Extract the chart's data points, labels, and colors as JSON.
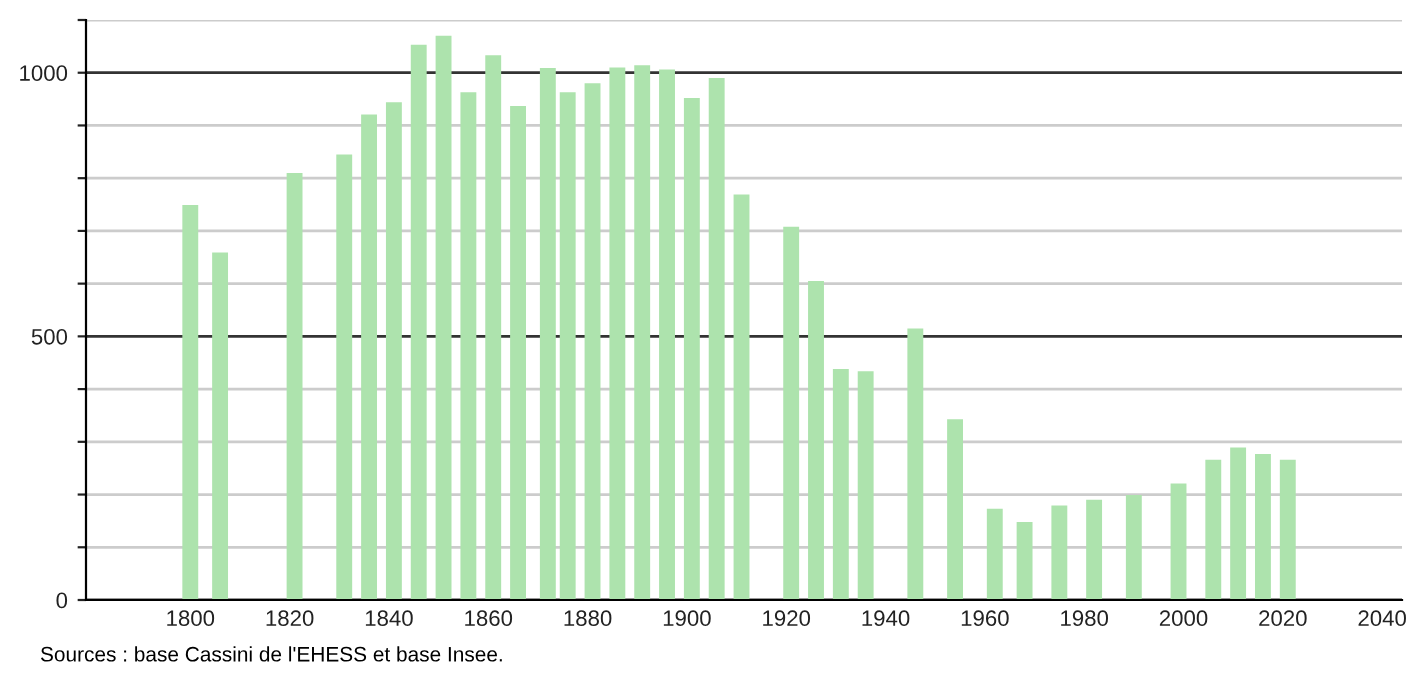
{
  "chart_data": {
    "type": "bar",
    "x": [
      1800,
      1806,
      1821,
      1831,
      1836,
      1841,
      1846,
      1851,
      1856,
      1861,
      1866,
      1872,
      1876,
      1881,
      1886,
      1891,
      1896,
      1901,
      1906,
      1911,
      1921,
      1926,
      1931,
      1936,
      1946,
      1954,
      1962,
      1968,
      1975,
      1982,
      1990,
      1999,
      2006,
      2011,
      2016,
      2021
    ],
    "values": [
      749,
      659,
      810,
      845,
      921,
      944,
      1053,
      1070,
      963,
      1033,
      937,
      1009,
      963,
      980,
      1010,
      1014,
      1006,
      952,
      990,
      769,
      708,
      605,
      438,
      434,
      515,
      343,
      173,
      148,
      179,
      190,
      199,
      221,
      266,
      289,
      277,
      266
    ],
    "color": "#ade3ad",
    "xlim": [
      1779,
      2044
    ],
    "xticks": [
      1800,
      1820,
      1840,
      1860,
      1880,
      1900,
      1920,
      1940,
      1960,
      1980,
      2000,
      2020,
      2040
    ],
    "ylim": [
      0,
      1100
    ],
    "yticks": [
      0,
      {
        "value": 100,
        "label": null
      },
      {
        "value": 200,
        "label": null
      },
      {
        "value": 300,
        "label": null
      },
      {
        "value": 400,
        "label": null
      },
      500,
      {
        "value": 600,
        "label": null
      },
      {
        "value": 700,
        "label": null
      },
      {
        "value": 800,
        "label": null
      },
      {
        "value": 900,
        "label": null
      },
      1000,
      {
        "value": 1100,
        "label": null
      }
    ],
    "grid": "y",
    "annotations": [
      "Sources : base Cassini de l'EHESS et base Insee."
    ]
  }
}
